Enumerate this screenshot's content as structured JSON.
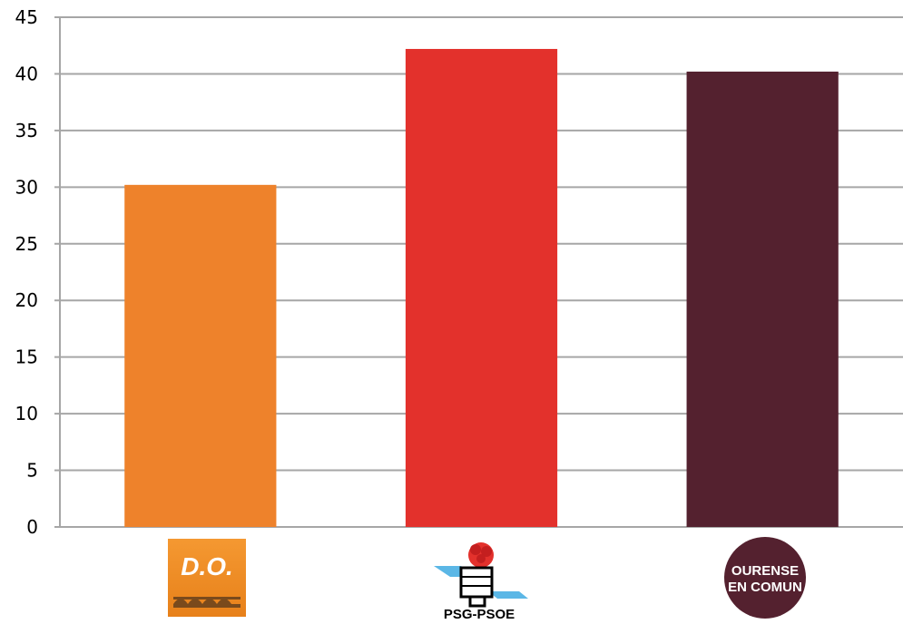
{
  "chart_data": {
    "type": "bar",
    "categories": [
      "D.O.",
      "PSG-PSOE",
      "OURENSE EN COMUN"
    ],
    "values": [
      30.2,
      42.2,
      40.2
    ],
    "colors": [
      "#ee822b",
      "#e3312c",
      "#54212f"
    ],
    "yticks": [
      "0",
      "5",
      "10",
      "15",
      "20",
      "25",
      "30",
      "35",
      "40",
      "45"
    ],
    "ylim": [
      0,
      45
    ],
    "grid": true,
    "legend": "none",
    "category_logos": [
      {
        "name": "do-logo",
        "text": "D.O.",
        "background": "#f28a22"
      },
      {
        "name": "psg-psoe-logo",
        "text": "PSG-PSOE",
        "rose_color": "#e3312c",
        "stripe_color": "#5bb7e6"
      },
      {
        "name": "ourense-en-comun-logo",
        "text_lines": [
          "OURENSE",
          "EN COMUN"
        ],
        "background": "#54212f"
      }
    ]
  }
}
